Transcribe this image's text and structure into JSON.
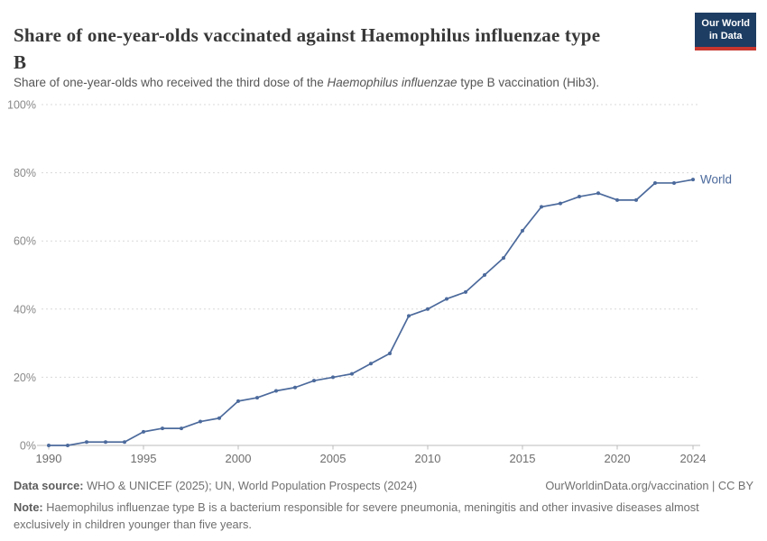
{
  "header": {
    "title_line1": "Share of one-year-olds vaccinated against Haemophilus influenzae type",
    "title_line2": "B",
    "subtitle_pre": "Share of one-year-olds who received the third dose of the ",
    "subtitle_italic": "Haemophilus influenzae",
    "subtitle_post": " type B vaccination (Hib3).",
    "logo_line1": "Our World",
    "logo_line2": "in Data",
    "logo_bg_color": "#1d3d63",
    "logo_accent_color": "#c8362e"
  },
  "chart_data": {
    "type": "line",
    "title": "Share of one-year-olds vaccinated against Haemophilus influenzae type B",
    "subtitle": "Share of one-year-olds who received the third dose of the Haemophilus influenzae type B vaccination (Hib3).",
    "xlabel": "",
    "ylabel": "",
    "xlim": [
      1990,
      2024
    ],
    "ylim": [
      0,
      100
    ],
    "grid": "horizontal-dashed",
    "legend_position": "end-of-line",
    "x_ticks": [
      {
        "v": 1990,
        "label": "1990"
      },
      {
        "v": 1995,
        "label": "1995"
      },
      {
        "v": 2000,
        "label": "2000"
      },
      {
        "v": 2005,
        "label": "2005"
      },
      {
        "v": 2010,
        "label": "2010"
      },
      {
        "v": 2015,
        "label": "2015"
      },
      {
        "v": 2020,
        "label": "2020"
      },
      {
        "v": 2024,
        "label": "2024"
      }
    ],
    "y_ticks": [
      {
        "v": 0,
        "label": "0%"
      },
      {
        "v": 20,
        "label": "20%"
      },
      {
        "v": 40,
        "label": "40%"
      },
      {
        "v": 60,
        "label": "60%"
      },
      {
        "v": 80,
        "label": "80%"
      },
      {
        "v": 100,
        "label": "100%"
      }
    ],
    "series": [
      {
        "name": "World",
        "color": "#4C6A9C",
        "x": [
          1990,
          1991,
          1992,
          1993,
          1994,
          1995,
          1996,
          1997,
          1998,
          1999,
          2000,
          2001,
          2002,
          2003,
          2004,
          2005,
          2006,
          2007,
          2008,
          2009,
          2010,
          2011,
          2012,
          2013,
          2014,
          2015,
          2016,
          2017,
          2018,
          2019,
          2020,
          2021,
          2022,
          2023,
          2024
        ],
        "values": [
          0,
          0,
          1,
          1,
          1,
          4,
          5,
          5,
          7,
          8,
          13,
          14,
          16,
          17,
          19,
          20,
          21,
          24,
          27,
          38,
          40,
          43,
          45,
          50,
          55,
          63,
          70,
          71,
          73,
          74,
          72,
          72,
          77,
          77,
          78
        ]
      }
    ],
    "colors": {
      "gridline": "#d9d9d9",
      "axis_line": "#bbbbbb",
      "y_tick_label": "#898989",
      "x_tick_label": "#6e6e6e"
    }
  },
  "footer": {
    "source_label": "Data source:",
    "source_text": " WHO & UNICEF (2025); UN, World Population Prospects (2024)",
    "link_text": "OurWorldinData.org/vaccination | CC BY",
    "note_label": "Note:",
    "note_text": " Haemophilus influenzae type B is a bacterium responsible for severe pneumonia, meningitis and other invasive diseases almost exclusively in children younger than five years."
  }
}
